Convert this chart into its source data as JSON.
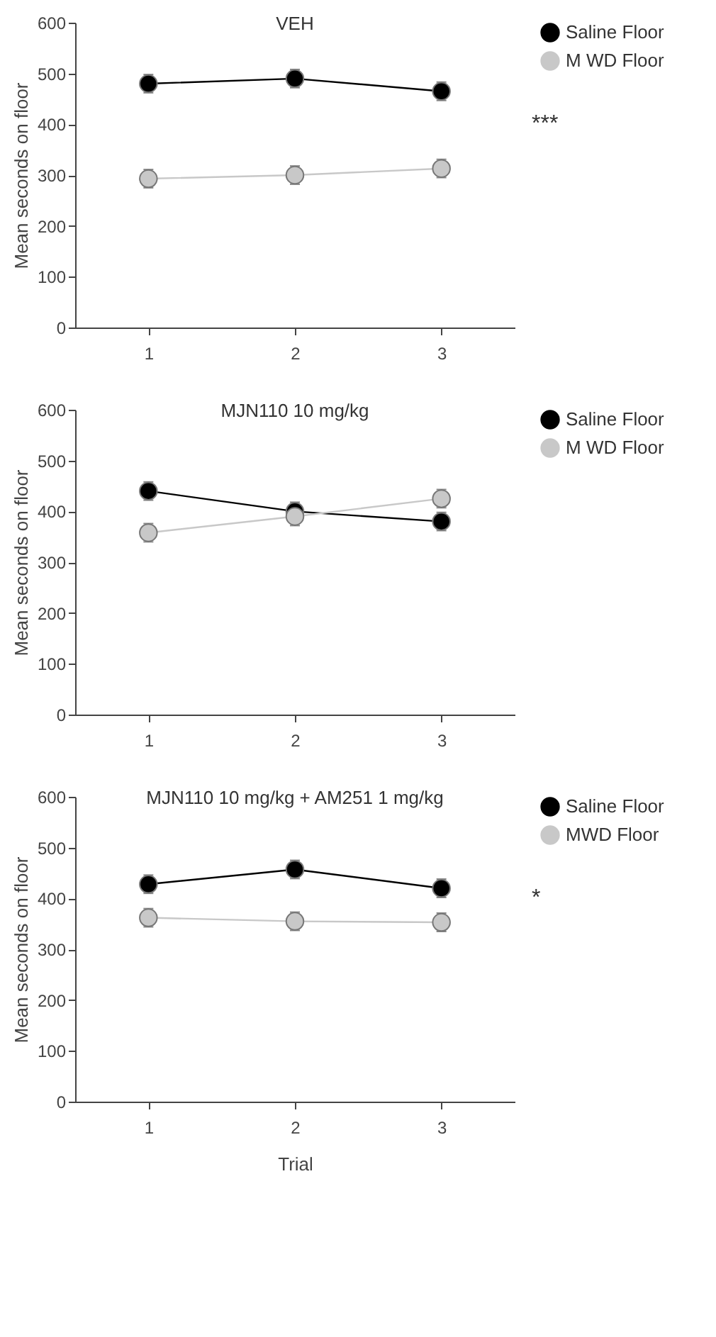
{
  "chart_data": [
    {
      "type": "line",
      "title": "VEH",
      "ylabel": "Mean seconds on floor",
      "x": [
        1,
        2,
        3
      ],
      "xlim": [
        0.5,
        3.5
      ],
      "xticks": [
        1,
        2,
        3
      ],
      "ylim": [
        0,
        600
      ],
      "yticks": [
        0,
        100,
        200,
        300,
        400,
        500,
        600
      ],
      "marker": "circle",
      "legend": "top right",
      "grid": false,
      "annotations": [
        "***"
      ],
      "series": [
        {
          "name": "Saline Floor",
          "color": "#000000",
          "values": [
            480,
            490,
            465
          ],
          "errors": [
            18,
            18,
            18
          ]
        },
        {
          "name": "M WD Floor",
          "color": "#c8c8c8",
          "values": [
            293,
            300,
            313
          ],
          "errors": [
            18,
            18,
            18
          ]
        }
      ]
    },
    {
      "type": "line",
      "title": "MJN110 10 mg/kg",
      "ylabel": "Mean seconds on floor",
      "x": [
        1,
        2,
        3
      ],
      "xlim": [
        0.5,
        3.5
      ],
      "xticks": [
        1,
        2,
        3
      ],
      "ylim": [
        0,
        600
      ],
      "yticks": [
        0,
        100,
        200,
        300,
        400,
        500,
        600
      ],
      "marker": "circle",
      "legend": "top right",
      "grid": false,
      "series": [
        {
          "name": "Saline Floor",
          "color": "#000000",
          "values": [
            440,
            400,
            380
          ],
          "errors": [
            18,
            18,
            18
          ]
        },
        {
          "name": "M WD Floor",
          "color": "#c8c8c8",
          "values": [
            358,
            390,
            425
          ],
          "errors": [
            18,
            18,
            18
          ]
        }
      ]
    },
    {
      "type": "line",
      "title": "MJN110 10 mg/kg + AM251 1 mg/kg",
      "xlabel": "Trial",
      "ylabel": "Mean seconds on floor",
      "x": [
        1,
        2,
        3
      ],
      "xlim": [
        0.5,
        3.5
      ],
      "xticks": [
        1,
        2,
        3
      ],
      "ylim": [
        0,
        600
      ],
      "yticks": [
        0,
        100,
        200,
        300,
        400,
        500,
        600
      ],
      "marker": "circle",
      "legend": "top right",
      "grid": false,
      "annotations": [
        "*"
      ],
      "series": [
        {
          "name": "Saline Floor",
          "color": "#000000",
          "values": [
            428,
            457,
            420
          ],
          "errors": [
            18,
            18,
            18
          ]
        },
        {
          "name": "MWD Floor",
          "color": "#c8c8c8",
          "values": [
            362,
            355,
            353
          ],
          "errors": [
            18,
            18,
            18
          ]
        }
      ]
    }
  ]
}
